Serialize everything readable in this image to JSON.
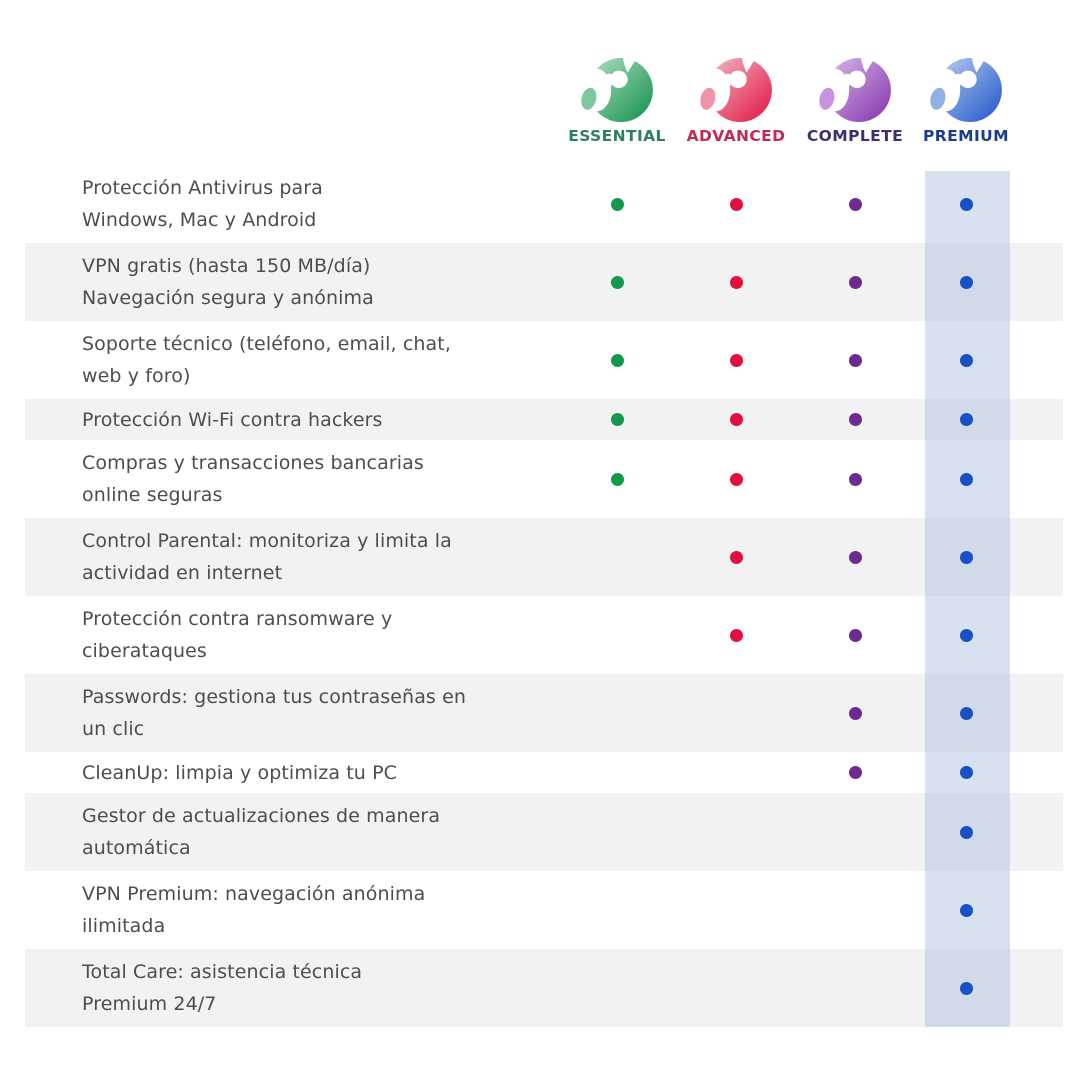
{
  "page": {
    "background": "#ffffff",
    "stripe_color": "#f2f2f3",
    "premium_highlight_color": "rgba(167,188,220,0.45)",
    "feature_text_color": "#4d4d4d"
  },
  "plans": [
    {
      "name": "ESSENTIAL",
      "label_color": "#2f7e60",
      "dot_color": "#12994b",
      "logo_light": "#b2ddc3",
      "logo_dark": "#0f9049",
      "logo_blob": "#7fc79d"
    },
    {
      "name": "ADVANCED",
      "label_color": "#c22a55",
      "dot_color": "#e40f3f",
      "logo_light": "#f4b9c5",
      "logo_dark": "#e01240",
      "logo_blob": "#ee93a8"
    },
    {
      "name": "COMPLETE",
      "label_color": "#3f2d6e",
      "dot_color": "#6d2b91",
      "logo_light": "#d9b8ea",
      "logo_dark": "#8233ab",
      "logo_blob": "#c693dc"
    },
    {
      "name": "PREMIUM",
      "label_color": "#1e3c8f",
      "dot_color": "#1951c4",
      "logo_light": "#b9cdf0",
      "logo_dark": "#1e55c8",
      "logo_blob": "#8fb2e5"
    }
  ],
  "features": [
    {
      "text": "Protección Antivirus para\nWindows, Mac y Android",
      "availability": [
        true,
        true,
        true,
        true
      ]
    },
    {
      "text": "VPN gratis (hasta 150 MB/día)\nNavegación segura y anónima",
      "availability": [
        true,
        true,
        true,
        true
      ]
    },
    {
      "text": "Soporte técnico (teléfono, email, chat,\nweb y foro)",
      "availability": [
        true,
        true,
        true,
        true
      ]
    },
    {
      "text": "Protección Wi-Fi contra hackers",
      "availability": [
        true,
        true,
        true,
        true
      ]
    },
    {
      "text": "Compras y transacciones bancarias\nonline seguras",
      "availability": [
        true,
        true,
        true,
        true
      ]
    },
    {
      "text": "Control Parental: monitoriza y limita la\nactividad en internet",
      "availability": [
        false,
        true,
        true,
        true
      ]
    },
    {
      "text": "Protección contra ransomware y\nciberataques",
      "availability": [
        false,
        true,
        true,
        true
      ]
    },
    {
      "text": "Passwords: gestiona tus contraseñas en\nun clic",
      "availability": [
        false,
        false,
        true,
        true
      ]
    },
    {
      "text": "CleanUp: limpia y optimiza tu PC",
      "availability": [
        false,
        false,
        true,
        true
      ]
    },
    {
      "text": "Gestor de actualizaciones de manera\nautomática",
      "availability": [
        false,
        false,
        false,
        true
      ]
    },
    {
      "text": "VPN Premium: navegación anónima\nilimitada",
      "availability": [
        false,
        false,
        false,
        true
      ]
    },
    {
      "text": "Total Care: asistencia técnica\nPremium 24/7",
      "availability": [
        false,
        false,
        false,
        true
      ]
    }
  ]
}
